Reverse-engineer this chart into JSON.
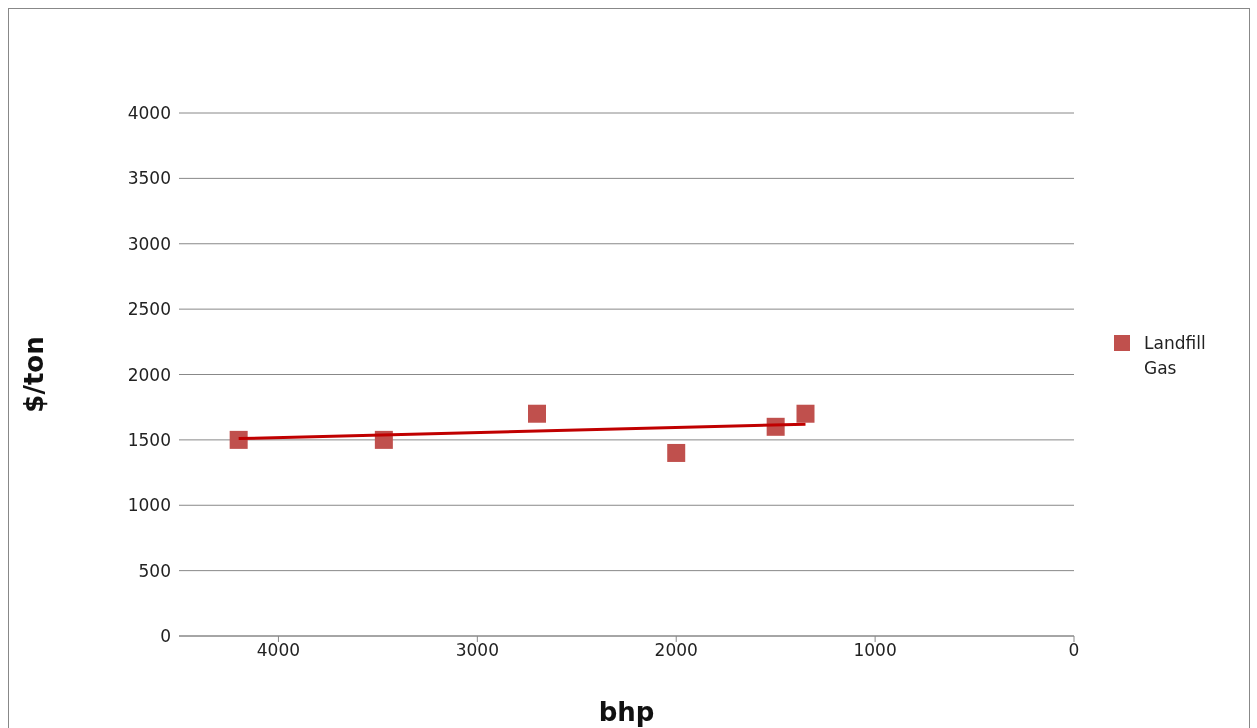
{
  "chart_data": {
    "type": "scatter",
    "xlabel": "bhp",
    "ylabel": "$/ton",
    "xlim": [
      4500,
      0
    ],
    "xticks": [
      4000,
      3000,
      2000,
      1000,
      0
    ],
    "ylim": [
      0,
      4000
    ],
    "yticks": [
      0,
      500,
      1000,
      1500,
      2000,
      2500,
      3000,
      3500,
      4000
    ],
    "grid": "y",
    "legend": "right",
    "series": [
      {
        "name": "Landfill Gas",
        "marker": "square",
        "color": "#c0504d",
        "x": [
          4200,
          3470,
          2700,
          2000,
          1500,
          1350
        ],
        "values": [
          1500,
          1500,
          1700,
          1400,
          1600,
          1700
        ]
      },
      {
        "type": "line",
        "marker": "none",
        "color": "#c00000",
        "x": [
          4200,
          1350
        ],
        "values": [
          1510,
          1620
        ]
      }
    ]
  }
}
